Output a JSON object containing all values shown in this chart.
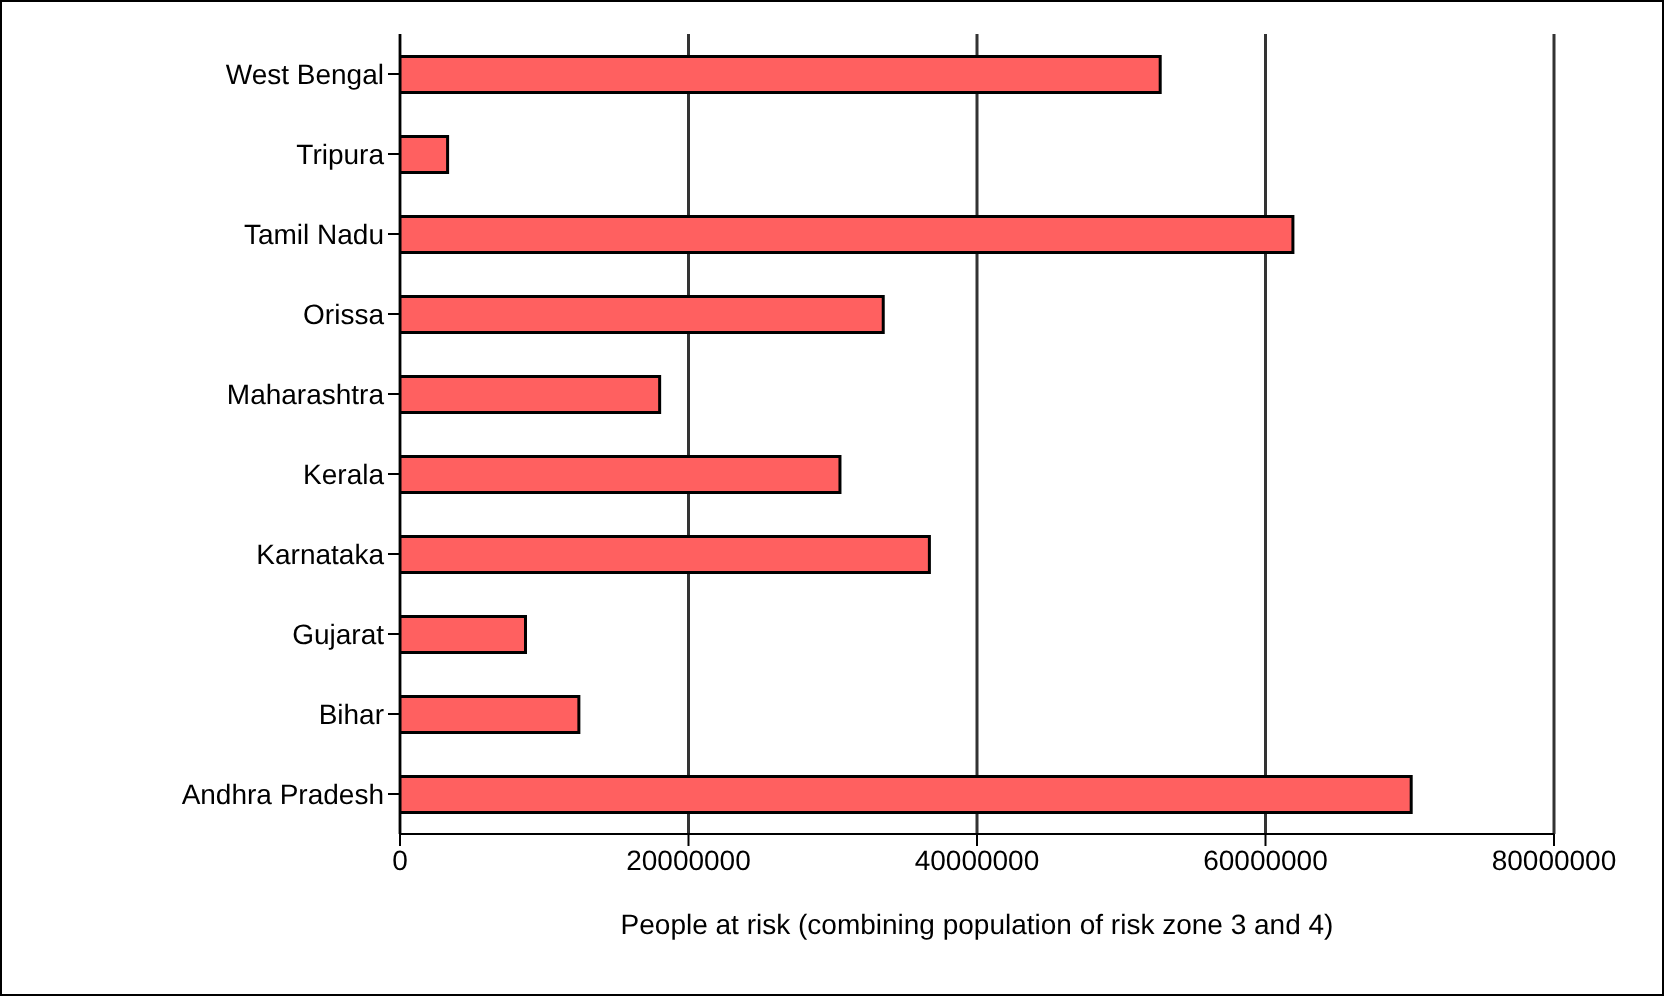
{
  "chart_data": {
    "type": "bar",
    "orientation": "horizontal",
    "xlabel": "People at risk (combining population of risk zone 3 and 4)",
    "categories": [
      "West Bengal",
      "Tripura",
      "Tamil Nadu",
      "Orissa",
      "Maharashtra",
      "Kerala",
      "Karnataka",
      "Gujarat",
      "Bihar",
      "Andhra Pradesh"
    ],
    "values": [
      52700000,
      3300000,
      61900000,
      33500000,
      18000000,
      30500000,
      36700000,
      8700000,
      12400000,
      70100000
    ],
    "color": "#ff6060",
    "xlim": [
      0,
      80000000
    ],
    "xticks": [
      0,
      20000000,
      40000000,
      60000000,
      80000000
    ],
    "grid": "x",
    "legend": false
  }
}
